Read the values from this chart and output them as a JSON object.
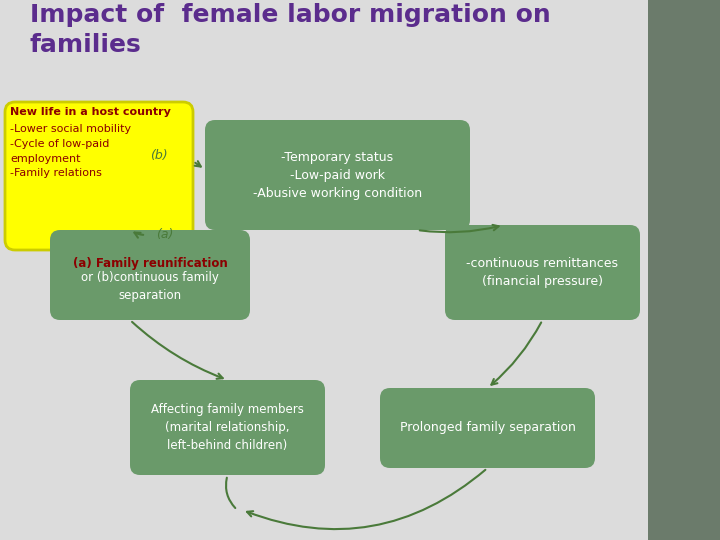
{
  "title_line1": "Impact of  female labor migration on",
  "title_line2": "families",
  "title_color": "#5B2C8D",
  "bg_color": "#DCDCDC",
  "right_panel_color": "#6B7B6B",
  "green_box_color": "#6A9A6A",
  "yellow_box_color": "#FFFF00",
  "yellow_box_border": "#CCCC00",
  "yellow_text_title_color": "#8B0000",
  "yellow_text_body_color": "#8B0000",
  "white_text_color": "#FFFFFF",
  "arrow_color": "#4A7A3A",
  "label_color": "#4A7A3A",
  "box1_text": "-Temporary status\n-Low-paid work\n-Abusive working condition",
  "box2_text": "-continuous remittances\n(financial pressure)",
  "box3_title": "(a) Family reunification",
  "box3_body": "or (b)continuous family\nseparation",
  "box4_text": "Affecting family members\n(marital relationship,\nleft-behind children)",
  "box5_text": "Prolonged family separation",
  "yellow_title": "New life in a host country",
  "yellow_body": "-Lower social mobility\n-Cycle of low-paid\nemployment\n-Family relations",
  "box3_title_color": "#8B0000",
  "box3_body_color": "#FFFFFF"
}
